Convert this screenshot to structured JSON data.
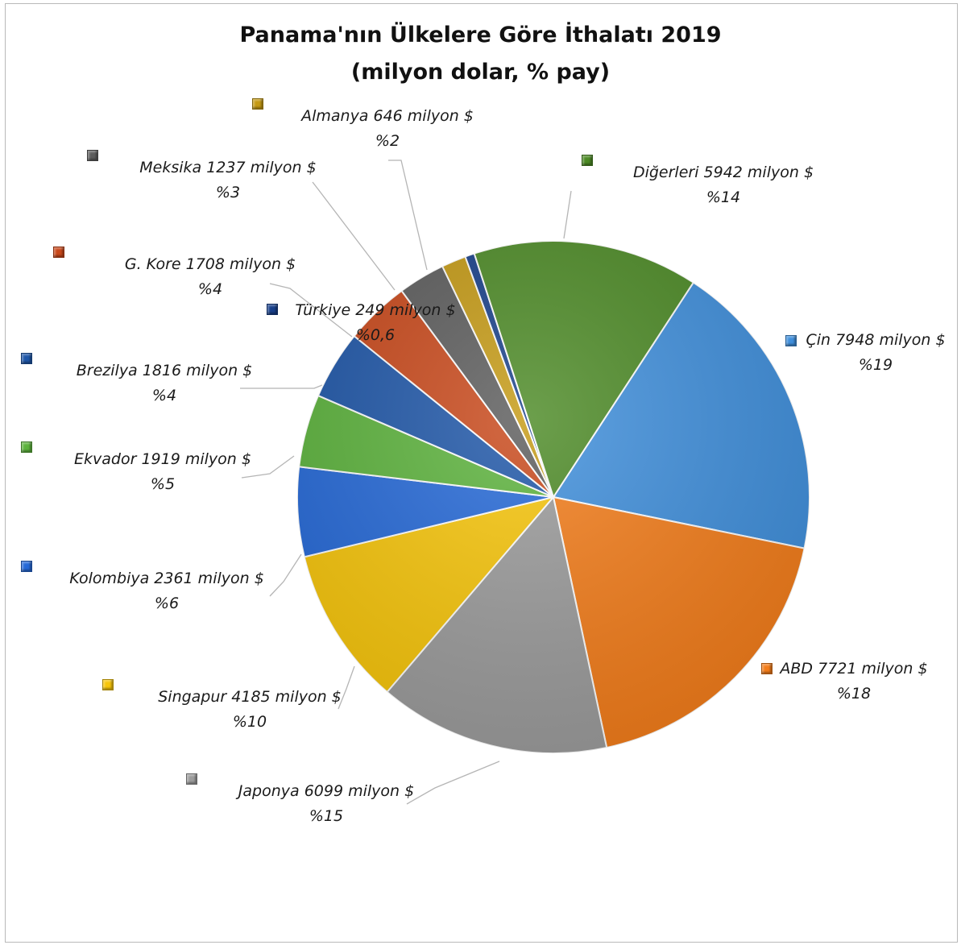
{
  "chart_data": {
    "type": "pie",
    "title": "Panama'nın Ülkelere Göre İthalatı 2019",
    "subtitle": "(milyon dolar, % pay)",
    "legend": "markers beside labels",
    "slices": [
      {
        "name": "Çin",
        "value": 7948,
        "label": "Çin 7948 milyon $",
        "pct": "%19",
        "color": "#3f8fdc"
      },
      {
        "name": "ABD",
        "value": 7721,
        "label": "ABD 7721 milyon $",
        "pct": "%18",
        "color": "#f47d1a"
      },
      {
        "name": "Japonya",
        "value": 6099,
        "label": "Japonya 6099 milyon $",
        "pct": "%15",
        "color": "#9c9c9c"
      },
      {
        "name": "Singapur",
        "value": 4185,
        "label": "Singapur 4185 milyon $",
        "pct": "%10",
        "color": "#f8c60a"
      },
      {
        "name": "Kolombiya",
        "value": 2361,
        "label": "Kolombiya 2361 milyon $",
        "pct": "%6",
        "color": "#2569d8"
      },
      {
        "name": "Ekvador",
        "value": 1919,
        "label": "Ekvador 1919 milyon $",
        "pct": "%5",
        "color": "#5cb33c"
      },
      {
        "name": "Brezilya",
        "value": 1816,
        "label": "Brezilya 1816 milyon $",
        "pct": "%4",
        "color": "#1e56a8"
      },
      {
        "name": "G. Kore",
        "value": 1708,
        "label": "G. Kore 1708 milyon $",
        "pct": "%4",
        "color": "#c9481a"
      },
      {
        "name": "Meksika",
        "value": 1237,
        "label": "Meksika 1237 milyon $",
        "pct": "%3",
        "color": "#5c5c5c"
      },
      {
        "name": "Almanya",
        "value": 646,
        "label": "Almanya 646 milyon $",
        "pct": "%2",
        "color": "#c59a14"
      },
      {
        "name": "Türkiye",
        "value": 249,
        "label": "Türkiye 249 milyon $",
        "pct": "%0,6",
        "color": "#173f8a"
      },
      {
        "name": "Diğerleri",
        "value": 5942,
        "label": "Diğerleri 5942 milyon $",
        "pct": "%14",
        "color": "#4c8a25"
      }
    ]
  }
}
